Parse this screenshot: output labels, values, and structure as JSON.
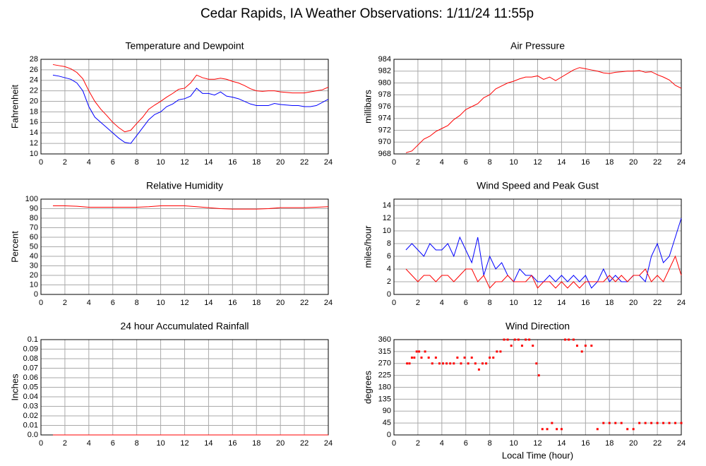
{
  "title": "Cedar Rapids, IA Weather Observations: 1/11/24 11:55p",
  "chart_data": [
    {
      "type": "line",
      "title": "Temperature and Dewpoint",
      "ylabel": "Fahrenheit",
      "xlim": [
        0,
        24
      ],
      "xticks": [
        0,
        2,
        4,
        6,
        8,
        10,
        12,
        14,
        16,
        18,
        20,
        22,
        24
      ],
      "ylim": [
        10,
        28
      ],
      "yticks": [
        10,
        12,
        14,
        16,
        18,
        20,
        22,
        24,
        26,
        28
      ],
      "grid": true,
      "x": [
        1,
        1.5,
        2,
        2.5,
        3,
        3.5,
        4,
        4.5,
        5,
        5.5,
        6,
        6.5,
        7,
        7.5,
        8,
        8.5,
        9,
        9.5,
        10,
        10.5,
        11,
        11.5,
        12,
        12.5,
        13,
        13.5,
        14,
        14.5,
        15,
        15.5,
        16,
        16.5,
        17,
        17.5,
        18,
        18.5,
        19,
        19.5,
        20,
        20.5,
        21,
        21.5,
        22,
        22.5,
        23,
        23.5,
        24
      ],
      "series": [
        {
          "color": "#ff0000",
          "values": [
            27,
            26.8,
            26.6,
            26.2,
            25.5,
            24.3,
            22,
            20,
            18.5,
            17.3,
            16,
            15,
            14.2,
            14.5,
            15.8,
            17,
            18.5,
            19.3,
            20,
            20.8,
            21.5,
            22.3,
            22.5,
            23.5,
            25,
            24.5,
            24.2,
            24.2,
            24.4,
            24.2,
            23.8,
            23.5,
            23,
            22.4,
            22,
            21.9,
            22,
            22,
            21.8,
            21.7,
            21.6,
            21.6,
            21.6,
            21.8,
            22,
            22.2,
            22.7
          ]
        },
        {
          "color": "#0000ff",
          "values": [
            25,
            24.8,
            24.5,
            24.2,
            23.5,
            22,
            19,
            17,
            16,
            15,
            14,
            13,
            12.2,
            12,
            13.5,
            15,
            16.5,
            17.5,
            18,
            19,
            19.5,
            20.3,
            20.5,
            21,
            22.5,
            21.5,
            21.5,
            21.2,
            21.8,
            21,
            20.8,
            20.5,
            20,
            19.5,
            19.2,
            19.2,
            19.2,
            19.6,
            19.4,
            19.3,
            19.2,
            19.2,
            19,
            19,
            19.2,
            19.8,
            20.4
          ]
        }
      ]
    },
    {
      "type": "line",
      "title": "Air Pressure",
      "ylabel": "millibars",
      "xlim": [
        0,
        24
      ],
      "xticks": [
        0,
        2,
        4,
        6,
        8,
        10,
        12,
        14,
        16,
        18,
        20,
        22,
        24
      ],
      "ylim": [
        968,
        984
      ],
      "yticks": [
        968,
        970,
        972,
        974,
        976,
        978,
        980,
        982,
        984
      ],
      "grid": true,
      "x": [
        1,
        1.5,
        2,
        2.5,
        3,
        3.5,
        4,
        4.5,
        5,
        5.5,
        6,
        6.5,
        7,
        7.5,
        8,
        8.5,
        9,
        9.5,
        10,
        10.5,
        11,
        11.5,
        12,
        12.5,
        13,
        13.5,
        14,
        14.5,
        15,
        15.5,
        16,
        16.5,
        17,
        17.5,
        18,
        18.5,
        19,
        19.5,
        20,
        20.5,
        21,
        21.5,
        22,
        22.5,
        23,
        23.5,
        24
      ],
      "series": [
        {
          "color": "#ff0000",
          "values": [
            968.2,
            968.5,
            969.5,
            970.5,
            971,
            971.8,
            972.3,
            972.8,
            973.8,
            974.5,
            975.5,
            976,
            976.5,
            977.5,
            978,
            979,
            979.5,
            980,
            980.3,
            980.7,
            981,
            981,
            981.2,
            980.6,
            981,
            980.4,
            981,
            981.6,
            982.2,
            982.6,
            982.4,
            982.2,
            982,
            981.7,
            981.6,
            981.8,
            981.9,
            982,
            982,
            982.1,
            981.8,
            981.9,
            981.4,
            981,
            980.5,
            979.6,
            979.1
          ]
        }
      ]
    },
    {
      "type": "line",
      "title": "Relative Humidity",
      "ylabel": "Percent",
      "xlim": [
        0,
        24
      ],
      "xticks": [
        0,
        2,
        4,
        6,
        8,
        10,
        12,
        14,
        16,
        18,
        20,
        22,
        24
      ],
      "ylim": [
        0,
        100
      ],
      "yticks": [
        0,
        10,
        20,
        30,
        40,
        50,
        60,
        70,
        80,
        90,
        100
      ],
      "grid": true,
      "x": [
        1,
        2,
        3,
        4,
        6,
        8,
        9,
        10,
        12,
        13,
        14,
        15,
        16,
        18,
        19,
        20,
        22,
        23,
        24
      ],
      "series": [
        {
          "color": "#ff0000",
          "values": [
            93,
            93,
            92.5,
            91.5,
            91.5,
            91.5,
            92,
            93,
            93,
            92,
            91,
            90,
            89.5,
            89.5,
            90,
            91,
            91,
            91.5,
            92
          ]
        }
      ]
    },
    {
      "type": "line",
      "title": "Wind Speed and Peak Gust",
      "ylabel": "miles/hour",
      "xlim": [
        0,
        24
      ],
      "xticks": [
        0,
        2,
        4,
        6,
        8,
        10,
        12,
        14,
        16,
        18,
        20,
        22,
        24
      ],
      "ylim": [
        0,
        15
      ],
      "yticks": [
        0,
        2,
        4,
        6,
        8,
        10,
        12,
        14
      ],
      "grid": true,
      "x": [
        1,
        1.5,
        2,
        2.5,
        3,
        3.5,
        4,
        4.5,
        5,
        5.5,
        6,
        6.5,
        7,
        7.5,
        8,
        8.5,
        9,
        9.5,
        10,
        10.5,
        11,
        11.5,
        12,
        12.5,
        13,
        13.5,
        14,
        14.5,
        15,
        15.5,
        16,
        16.5,
        17,
        17.5,
        18,
        18.5,
        19,
        19.5,
        20,
        20.5,
        21,
        21.5,
        22,
        22.5,
        23,
        23.5,
        24
      ],
      "series": [
        {
          "color": "#0000ff",
          "values": [
            7,
            8,
            7,
            6,
            8,
            7,
            7,
            8,
            6,
            9,
            7,
            5,
            9,
            3,
            6,
            4,
            5,
            3,
            2,
            4,
            3,
            3,
            2,
            2,
            3,
            2,
            3,
            2,
            3,
            2,
            3,
            1,
            2,
            4,
            2,
            3,
            2,
            2,
            3,
            3,
            2,
            6,
            8,
            5,
            6,
            9,
            12
          ]
        },
        {
          "color": "#ff0000",
          "values": [
            4,
            3,
            2,
            3,
            3,
            2,
            3,
            3,
            2,
            3,
            4,
            4,
            2,
            3,
            1,
            2,
            2,
            3,
            2,
            2,
            2,
            3,
            1,
            2,
            2,
            1,
            2,
            1,
            2,
            1,
            2,
            2,
            2,
            2,
            3,
            2,
            3,
            2,
            3,
            3,
            4,
            2,
            3,
            2,
            4,
            6,
            3
          ]
        }
      ]
    },
    {
      "type": "line",
      "title": "24 hour Accumulated Rainfall",
      "ylabel": "Inches",
      "xlim": [
        0,
        24
      ],
      "xticks": [
        0,
        2,
        4,
        6,
        8,
        10,
        12,
        14,
        16,
        18,
        20,
        22,
        24
      ],
      "ylim": [
        0,
        0.1
      ],
      "yticks": [
        {
          "value": 0,
          "label": "0.0"
        },
        0.01,
        0.02,
        0.03,
        0.04,
        0.05,
        0.06,
        0.07,
        0.08,
        0.09,
        0.1
      ],
      "grid": true,
      "x": [
        1,
        24
      ],
      "series": [
        {
          "color": "#ff0000",
          "values": [
            0,
            0
          ]
        }
      ]
    },
    {
      "type": "scatter",
      "title": "Wind Direction",
      "ylabel": "degrees",
      "xlabel": "Local Time (hour)",
      "xlim": [
        0,
        24
      ],
      "xticks": [
        0,
        2,
        4,
        6,
        8,
        10,
        12,
        14,
        16,
        18,
        20,
        22,
        24
      ],
      "ylim": [
        0,
        360
      ],
      "yticks": [
        0,
        45,
        90,
        135,
        180,
        225,
        270,
        315,
        360
      ],
      "grid": true,
      "x": [
        1.1,
        1.3,
        1.5,
        1.7,
        1.9,
        2.1,
        2.3,
        2.6,
        2.9,
        3.2,
        3.5,
        3.8,
        4.1,
        4.4,
        4.7,
        5,
        5.3,
        5.6,
        5.9,
        6.2,
        6.5,
        6.8,
        7.1,
        7.4,
        7.7,
        8,
        8.3,
        8.6,
        8.9,
        9.2,
        9.5,
        9.8,
        10.1,
        10.4,
        10.7,
        11,
        11.3,
        11.6,
        11.9,
        12.1,
        12.4,
        12.8,
        13.2,
        13.6,
        14,
        14.3,
        14.6,
        15,
        15.3,
        15.7,
        16,
        16.5,
        17,
        17.5,
        18,
        18.5,
        19,
        19.5,
        20,
        20.5,
        21,
        21.5,
        22,
        22.5,
        23,
        23.5,
        24
      ],
      "series": [
        {
          "color": "#ff0000",
          "values": [
            270,
            270,
            292,
            292,
            315,
            315,
            292,
            315,
            292,
            270,
            292,
            270,
            270,
            270,
            270,
            270,
            292,
            270,
            292,
            270,
            292,
            270,
            247,
            270,
            270,
            292,
            292,
            315,
            315,
            360,
            360,
            337,
            360,
            360,
            337,
            360,
            360,
            337,
            270,
            225,
            22,
            22,
            45,
            22,
            22,
            360,
            360,
            360,
            337,
            315,
            337,
            337,
            22,
            45,
            45,
            45,
            45,
            22,
            22,
            45,
            45,
            45,
            45,
            45,
            45,
            45,
            45
          ]
        }
      ]
    }
  ]
}
